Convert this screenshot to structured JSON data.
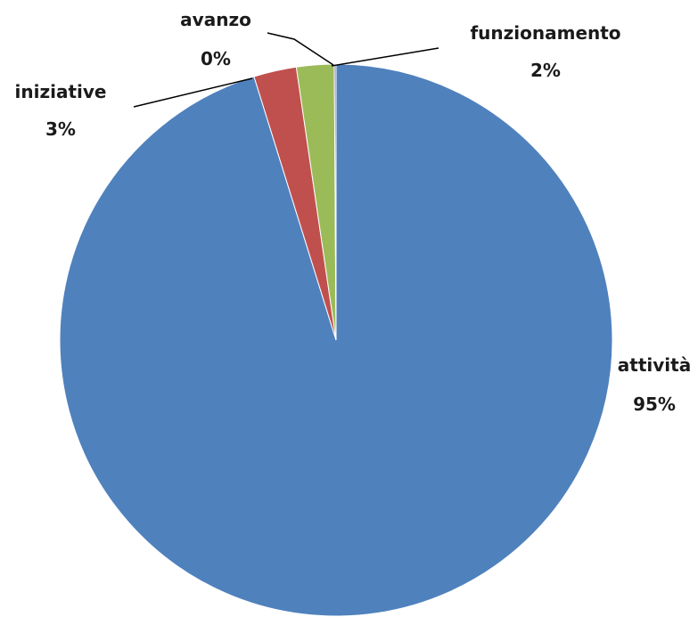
{
  "chart_data": {
    "type": "pie",
    "title": "",
    "slices": [
      {
        "label": "attività",
        "percent_label": "95%",
        "value": 95.2,
        "color": "#4F81BD"
      },
      {
        "label": "iniziative",
        "percent_label": "3%",
        "value": 2.5,
        "color": "#C0504D"
      },
      {
        "label": "funzionamento",
        "percent_label": "2%",
        "value": 2.2,
        "color": "#9BBB59"
      },
      {
        "label": "avanzo",
        "percent_label": "0%",
        "value": 0.1,
        "color": "#8064A2"
      }
    ],
    "start_angle": "12 o'clock",
    "direction": "clockwise",
    "legend": "none (data labels with category name and percentage)"
  }
}
